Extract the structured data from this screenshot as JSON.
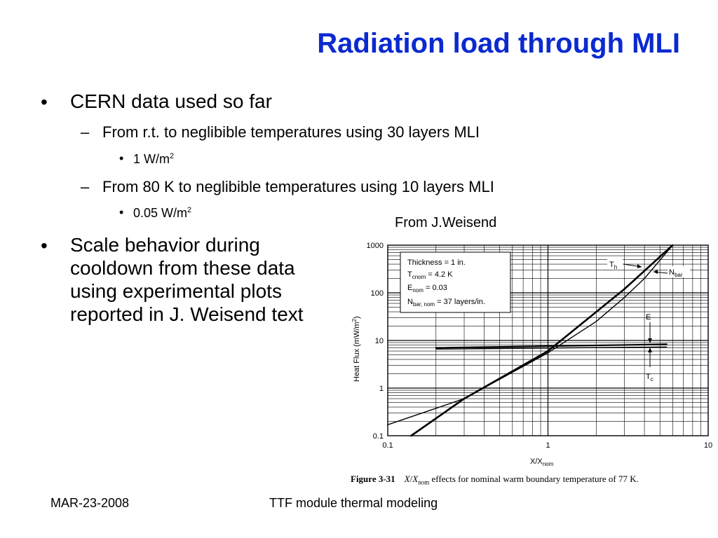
{
  "slide": {
    "title": "Radiation load through MLI",
    "bullets": [
      {
        "mark": "•",
        "text": "CERN data used so far"
      },
      {
        "mark": "•",
        "text": "Scale behavior during cooldown from these data using experimental plots reported in J. Weisend text"
      }
    ],
    "subbullets": [
      {
        "mark": "–",
        "text": "From r.t. to neglibible temperatures using 30 layers MLI"
      },
      {
        "mark": "–",
        "text": "From 80 K to neglibible temperatures using 10 layers MLI"
      }
    ],
    "subsubbullets": [
      {
        "mark": "•",
        "base": "1 W/m",
        "sup": "2"
      },
      {
        "mark": "•",
        "base": "0.05 W/m",
        "sup": "2"
      }
    ],
    "source": "From J.Weisend",
    "footer_left": "MAR-23-2008",
    "footer_center": "TTF module thermal modeling"
  },
  "chart_data": {
    "type": "line",
    "x_scale": "log",
    "y_scale": "log",
    "xlim": [
      0.1,
      10
    ],
    "ylim": [
      0.1,
      1000
    ],
    "x_ticks": [
      "0.1",
      "1",
      "10"
    ],
    "y_ticks": [
      "0.1",
      "1",
      "10",
      "100",
      "1000"
    ],
    "xlabel": "X/X",
    "xlabel_sub": "nom",
    "ylabel": "Heat Flux (mW/m",
    "ylabel_sup": "2",
    "ylabel_end": ")",
    "grid": true,
    "legend_box": {
      "thickness": "Thickness = 1 in.",
      "tcnom_base": "T",
      "tcnom_sub": "cnom",
      "tcnom_rest": " = 4.2 K",
      "enom_base": "E",
      "enom_sub": "nom",
      "enom_rest": " = 0.03",
      "nbar_base": "N",
      "nbar_sub": "bar, nom",
      "nbar_rest": " = 37 layers/in."
    },
    "series": [
      {
        "name": "T",
        "name_sub": "h",
        "points": [
          [
            0.14,
            0.1
          ],
          [
            0.3,
            0.6
          ],
          [
            1.0,
            6.0
          ],
          [
            3.0,
            120
          ],
          [
            6.0,
            1000
          ]
        ]
      },
      {
        "name": "N",
        "name_sub": "bar",
        "points": [
          [
            0.1,
            0.17
          ],
          [
            0.3,
            0.6
          ],
          [
            1.0,
            5.5
          ],
          [
            2.0,
            25
          ],
          [
            3.0,
            80
          ],
          [
            4.0,
            200
          ],
          [
            6.0,
            1000
          ]
        ]
      },
      {
        "name": "E",
        "name_sub": "",
        "points": [
          [
            0.2,
            7.0
          ],
          [
            5.5,
            8.3
          ]
        ]
      },
      {
        "name": "T",
        "name_sub": "c",
        "points": [
          [
            0.2,
            6.6
          ],
          [
            5.5,
            7.3
          ]
        ]
      }
    ],
    "caption": {
      "figure": "Figure 3-31",
      "var_x": "X",
      "slash": "/",
      "var_xnom": "X",
      "var_sub": "nom",
      "text": " effects for nominal warm boundary temperature of 77 K."
    }
  }
}
